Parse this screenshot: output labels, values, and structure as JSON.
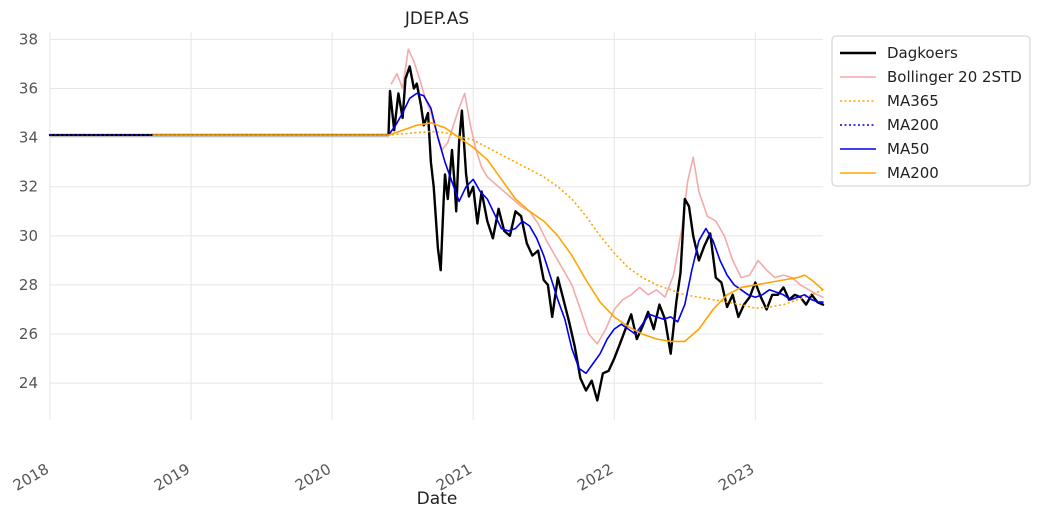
{
  "chart_data": {
    "type": "line",
    "title": "JDEP.AS",
    "xlabel": "Date",
    "ylabel": "",
    "xlim": [
      2018.0,
      2023.48
    ],
    "ylim": [
      22.5,
      38.3
    ],
    "x_ticks": [
      "2018",
      "2019",
      "2020",
      "2021",
      "2022",
      "2023"
    ],
    "y_ticks": [
      24,
      26,
      28,
      30,
      32,
      34,
      36,
      38
    ],
    "grid": true,
    "legend_position": "outside-right",
    "series": [
      {
        "name": "Dagkoers",
        "color": "#000000",
        "style": "solid",
        "x": [
          2018.0,
          2020.4,
          2020.41,
          2020.44,
          2020.47,
          2020.5,
          2020.52,
          2020.55,
          2020.58,
          2020.6,
          2020.63,
          2020.65,
          2020.68,
          2020.7,
          2020.72,
          2020.75,
          2020.77,
          2020.79,
          2020.8,
          2020.82,
          2020.85,
          2020.87,
          2020.88,
          2020.9,
          2020.92,
          2020.95,
          2020.97,
          2021.0,
          2021.03,
          2021.06,
          2021.1,
          2021.14,
          2021.18,
          2021.22,
          2021.26,
          2021.3,
          2021.34,
          2021.38,
          2021.42,
          2021.46,
          2021.5,
          2021.53,
          2021.56,
          2021.6,
          2021.64,
          2021.68,
          2021.72,
          2021.76,
          2021.8,
          2021.84,
          2021.88,
          2021.92,
          2021.96,
          2022.0,
          2022.04,
          2022.08,
          2022.12,
          2022.16,
          2022.2,
          2022.24,
          2022.28,
          2022.32,
          2022.36,
          2022.4,
          2022.44,
          2022.47,
          2022.5,
          2022.53,
          2022.56,
          2022.6,
          2022.64,
          2022.68,
          2022.72,
          2022.76,
          2022.8,
          2022.84,
          2022.88,
          2022.92,
          2022.96,
          2023.0,
          2023.04,
          2023.08,
          2023.12,
          2023.16,
          2023.2,
          2023.24,
          2023.28,
          2023.32,
          2023.36,
          2023.4,
          2023.44,
          2023.48
        ],
        "y": [
          34.1,
          34.1,
          35.9,
          34.3,
          35.8,
          34.8,
          36.4,
          36.9,
          36.0,
          36.2,
          35.3,
          34.5,
          35.0,
          33.0,
          32.0,
          29.5,
          28.6,
          31.4,
          32.5,
          31.5,
          33.5,
          32.0,
          31.0,
          33.8,
          35.1,
          32.5,
          31.6,
          32.0,
          30.5,
          31.8,
          30.6,
          29.9,
          31.1,
          30.2,
          30.0,
          31.0,
          30.8,
          29.7,
          29.2,
          29.4,
          28.2,
          28.0,
          26.7,
          28.3,
          27.4,
          26.5,
          25.5,
          24.2,
          23.7,
          24.1,
          23.3,
          24.4,
          24.5,
          25.0,
          25.6,
          26.2,
          26.8,
          25.8,
          26.3,
          26.9,
          26.2,
          27.2,
          26.6,
          25.2,
          27.3,
          28.5,
          31.5,
          31.2,
          30.0,
          29.0,
          29.6,
          30.1,
          28.3,
          28.1,
          27.1,
          27.6,
          26.7,
          27.2,
          27.5,
          28.1,
          27.5,
          27.0,
          27.6,
          27.6,
          27.9,
          27.4,
          27.6,
          27.5,
          27.2,
          27.6,
          27.3,
          27.2
        ]
      },
      {
        "name": "Bollinger 20 2STD",
        "color": "#f4aaaa",
        "style": "solid",
        "x": [
          2020.42,
          2020.46,
          2020.5,
          2020.54,
          2020.58,
          2020.62,
          2020.66,
          2020.7,
          2020.74,
          2020.78,
          2020.82,
          2020.86,
          2020.9,
          2020.94,
          2020.98,
          2021.02,
          2021.06,
          2021.1,
          2021.16,
          2021.22,
          2021.28,
          2021.34,
          2021.4,
          2021.46,
          2021.52,
          2021.58,
          2021.64,
          2021.7,
          2021.76,
          2021.82,
          2021.88,
          2021.94,
          2022.0,
          2022.06,
          2022.12,
          2022.18,
          2022.24,
          2022.3,
          2022.36,
          2022.42,
          2022.48,
          2022.52,
          2022.56,
          2022.6,
          2022.66,
          2022.72,
          2022.78,
          2022.84,
          2022.9,
          2022.96,
          2023.02,
          2023.08,
          2023.14,
          2023.2,
          2023.26,
          2023.32,
          2023.38,
          2023.44,
          2023.48
        ],
        "y": [
          36.2,
          36.6,
          36.0,
          37.6,
          37.1,
          36.4,
          35.6,
          35.0,
          34.2,
          33.5,
          33.8,
          34.5,
          35.2,
          35.8,
          34.5,
          33.5,
          32.8,
          32.4,
          32.1,
          31.8,
          31.5,
          31.2,
          31.0,
          30.5,
          29.8,
          29.2,
          28.6,
          28.0,
          27.0,
          26.0,
          25.6,
          26.2,
          27.0,
          27.4,
          27.6,
          27.9,
          27.6,
          27.8,
          27.5,
          28.4,
          30.3,
          32.2,
          33.2,
          31.8,
          30.8,
          30.6,
          30.0,
          29.0,
          28.3,
          28.4,
          29.0,
          28.6,
          28.3,
          28.4,
          28.3,
          28.0,
          27.8,
          27.6,
          27.5
        ]
      },
      {
        "name": "MA365",
        "color": "#ffa500",
        "style": "dotted",
        "x": [
          2018.0,
          2020.4,
          2020.5,
          2020.6,
          2020.7,
          2020.8,
          2020.9,
          2021.0,
          2021.1,
          2021.2,
          2021.3,
          2021.4,
          2021.5,
          2021.6,
          2021.7,
          2021.8,
          2021.9,
          2022.0,
          2022.1,
          2022.2,
          2022.3,
          2022.4,
          2022.5,
          2022.6,
          2022.7,
          2022.8,
          2022.9,
          2023.0,
          2023.1,
          2023.2,
          2023.3,
          2023.4,
          2023.48
        ],
        "y": [
          34.1,
          34.1,
          34.15,
          34.2,
          34.25,
          34.2,
          34.05,
          33.9,
          33.6,
          33.3,
          33.0,
          32.7,
          32.4,
          32.0,
          31.5,
          30.8,
          30.0,
          29.3,
          28.7,
          28.3,
          28.0,
          27.8,
          27.6,
          27.5,
          27.4,
          27.3,
          27.2,
          27.05,
          27.1,
          27.2,
          27.4,
          27.6,
          27.8
        ]
      },
      {
        "name": "MA200",
        "color": "#0000cc",
        "style": "dotted",
        "x": [
          2018.0,
          2018.73
        ],
        "y": [
          34.1,
          34.1
        ]
      },
      {
        "name": "MA50",
        "color": "#0000ee",
        "style": "solid",
        "x": [
          2020.4,
          2020.45,
          2020.5,
          2020.55,
          2020.6,
          2020.65,
          2020.7,
          2020.75,
          2020.8,
          2020.85,
          2020.9,
          2020.95,
          2021.0,
          2021.05,
          2021.1,
          2021.15,
          2021.2,
          2021.25,
          2021.3,
          2021.35,
          2021.4,
          2021.45,
          2021.5,
          2021.55,
          2021.6,
          2021.65,
          2021.7,
          2021.75,
          2021.8,
          2021.85,
          2021.9,
          2021.95,
          2022.0,
          2022.05,
          2022.1,
          2022.15,
          2022.2,
          2022.25,
          2022.3,
          2022.35,
          2022.4,
          2022.45,
          2022.5,
          2022.55,
          2022.6,
          2022.65,
          2022.7,
          2022.75,
          2022.8,
          2022.85,
          2022.9,
          2022.95,
          2023.0,
          2023.05,
          2023.1,
          2023.15,
          2023.2,
          2023.25,
          2023.3,
          2023.35,
          2023.4,
          2023.45,
          2023.48
        ],
        "y": [
          34.1,
          34.5,
          35.0,
          35.6,
          35.8,
          35.7,
          35.2,
          34.0,
          33.0,
          32.2,
          31.4,
          32.0,
          32.3,
          31.8,
          31.5,
          30.9,
          30.3,
          30.2,
          30.3,
          30.6,
          30.4,
          29.9,
          29.2,
          28.3,
          27.4,
          26.6,
          25.4,
          24.6,
          24.4,
          24.8,
          25.2,
          25.8,
          26.2,
          26.4,
          26.2,
          26.0,
          26.4,
          26.8,
          26.7,
          26.6,
          26.7,
          26.5,
          27.2,
          28.6,
          29.8,
          30.3,
          29.8,
          29.0,
          28.4,
          28.0,
          27.8,
          27.6,
          27.5,
          27.6,
          27.8,
          27.7,
          27.6,
          27.4,
          27.5,
          27.6,
          27.4,
          27.3,
          27.3
        ]
      },
      {
        "name": "MA200",
        "color": "#ffa500",
        "style": "solid",
        "x": [
          2018.73,
          2020.4,
          2020.5,
          2020.6,
          2020.7,
          2020.8,
          2020.9,
          2021.0,
          2021.1,
          2021.2,
          2021.3,
          2021.4,
          2021.5,
          2021.6,
          2021.7,
          2021.8,
          2021.9,
          2022.0,
          2022.1,
          2022.2,
          2022.3,
          2022.4,
          2022.5,
          2022.6,
          2022.7,
          2022.8,
          2022.9,
          2023.0,
          2023.1,
          2023.2,
          2023.3,
          2023.35,
          2023.4,
          2023.48
        ],
        "y": [
          34.1,
          34.1,
          34.3,
          34.5,
          34.6,
          34.4,
          34.0,
          33.6,
          33.1,
          32.3,
          31.5,
          31.0,
          30.6,
          30.0,
          29.2,
          28.2,
          27.3,
          26.7,
          26.3,
          26.0,
          25.8,
          25.7,
          25.7,
          26.2,
          27.0,
          27.6,
          27.9,
          28.0,
          28.1,
          28.2,
          28.3,
          28.4,
          28.2,
          27.8
        ]
      }
    ]
  }
}
